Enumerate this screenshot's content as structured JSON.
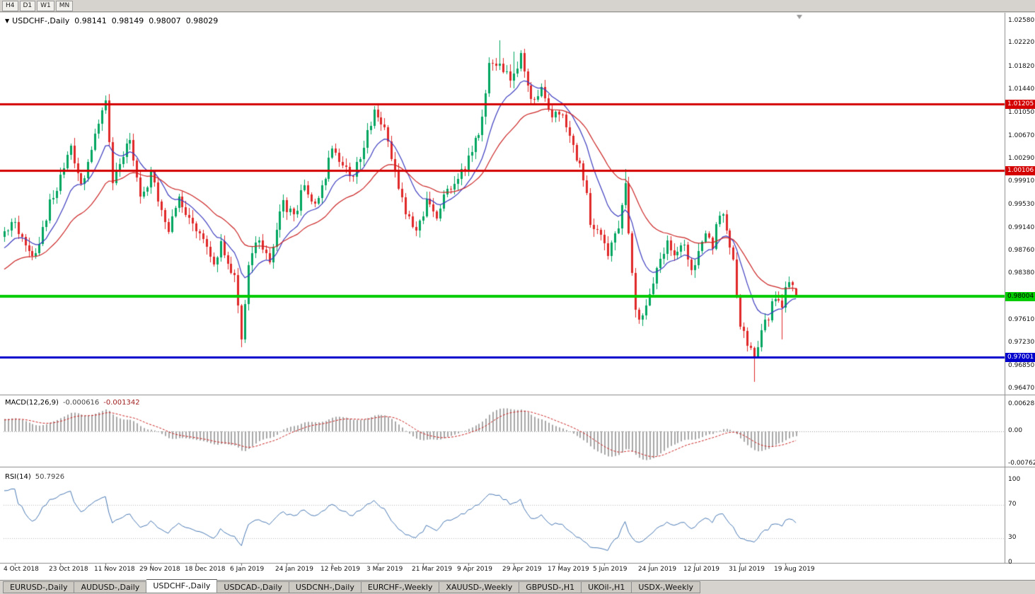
{
  "icons": {
    "dropdown": "▼"
  },
  "toolbar": {
    "timeframes": [
      "H4",
      "D1",
      "W1",
      "MN"
    ]
  },
  "chart": {
    "title": {
      "symbol": "USDCHF-,Daily",
      "open": "0.98141",
      "high": "0.98149",
      "low": "0.98007",
      "close": "0.98029"
    },
    "price_scale_labels": [
      "1.02580",
      "1.02220",
      "1.01820",
      "1.01440",
      "1.01050",
      "1.00670",
      "1.00290",
      "0.99910",
      "0.99530",
      "0.99140",
      "0.98760",
      "0.98380",
      "0.97610",
      "0.97230",
      "0.96850",
      "0.96470"
    ],
    "levels": [
      {
        "label": "1.01205",
        "price": 1.01205,
        "color": "#d40000",
        "text_color": "#ffffff",
        "thickness": 3
      },
      {
        "label": "1.00106",
        "price": 1.00106,
        "color": "#d40000",
        "text_color": "#ffffff",
        "thickness": 3
      },
      {
        "label": "0.98004",
        "price": 0.98004,
        "color": "#00cc00",
        "text_color": "#000000",
        "thickness": 4
      },
      {
        "label": "0.97001",
        "price": 0.97001,
        "color": "#0000cc",
        "text_color": "#ffffff",
        "thickness": 3
      }
    ]
  },
  "macd_panel": {
    "label": "MACD(12,26,9)",
    "value_main": "-0.000616",
    "value_signal": "-0.001342",
    "scale": {
      "top": "0.006286",
      "zero": "0.00",
      "bottom": "-0.00762"
    }
  },
  "rsi_panel": {
    "label": "RSI(14)",
    "value": "50.7926",
    "scale": {
      "top": "100",
      "upper": "70",
      "lower": "30",
      "bottom": "0"
    }
  },
  "tab_bar": {
    "active_index": 2,
    "tabs": [
      "EURUSD-,Daily",
      "AUDUSD-,Daily",
      "USDCHF-,Daily",
      "USDCAD-,Daily",
      "USDCNH-,Daily",
      "EURCHF-,Weekly",
      "XAUUSD-,Weekly",
      "GBPUSD-,H1",
      "UKOil-,H1",
      "USDX-,Weekly"
    ]
  },
  "chart_data": {
    "type": "candlestick",
    "symbol": "USDCHF",
    "period": "Daily",
    "y_axis": {
      "max": 1.0258,
      "min": 0.9647
    },
    "x_axis_dates": [
      "4 Oct 2018",
      "23 Oct 2018",
      "11 Nov 2018",
      "29 Nov 2018",
      "18 Dec 2018",
      "6 Jan 2019",
      "24 Jan 2019",
      "12 Feb 2019",
      "3 Mar 2019",
      "21 Mar 2019",
      "9 Apr 2019",
      "29 Apr 2019",
      "17 May 2019",
      "5 Jun 2019",
      "24 Jun 2019",
      "12 Jul 2019",
      "31 Jul 2019",
      "19 Aug 2019"
    ],
    "date_label_indices": [
      3,
      16,
      29,
      42,
      55,
      68,
      81,
      94,
      107,
      120,
      133,
      146,
      159,
      172,
      185,
      198,
      211,
      224
    ],
    "num_candles": 228,
    "price_anchors": [
      [
        -30,
        0.9755
      ],
      [
        -20,
        0.9802
      ],
      [
        -10,
        0.9862
      ],
      [
        0,
        0.9905
      ],
      [
        3,
        0.9928
      ],
      [
        6,
        0.9878
      ],
      [
        9,
        0.9868
      ],
      [
        13,
        0.9955
      ],
      [
        17,
        1.0008
      ],
      [
        19,
        1.0052
      ],
      [
        22,
        0.9985
      ],
      [
        25,
        1.004
      ],
      [
        27,
        1.009
      ],
      [
        29,
        1.0118
      ],
      [
        31,
        0.9992
      ],
      [
        34,
        1.0035
      ],
      [
        36,
        1.0058
      ],
      [
        39,
        0.9962
      ],
      [
        42,
        1.0002
      ],
      [
        45,
        0.9945
      ],
      [
        47,
        0.9908
      ],
      [
        50,
        0.9965
      ],
      [
        53,
        0.993
      ],
      [
        57,
        0.99
      ],
      [
        60,
        0.9856
      ],
      [
        62,
        0.989
      ],
      [
        66,
        0.9832
      ],
      [
        68,
        0.9722
      ],
      [
        70,
        0.986
      ],
      [
        73,
        0.9895
      ],
      [
        76,
        0.9862
      ],
      [
        80,
        0.9958
      ],
      [
        83,
        0.993
      ],
      [
        86,
        0.999
      ],
      [
        89,
        0.9952
      ],
      [
        92,
        1.0
      ],
      [
        94,
        1.0052
      ],
      [
        97,
        1.0018
      ],
      [
        100,
        1.0002
      ],
      [
        103,
        1.005
      ],
      [
        106,
        1.0108
      ],
      [
        109,
        1.0075
      ],
      [
        112,
        1.0005
      ],
      [
        115,
        0.9938
      ],
      [
        118,
        0.9906
      ],
      [
        121,
        0.9955
      ],
      [
        124,
        0.9932
      ],
      [
        127,
        0.998
      ],
      [
        130,
        1.0
      ],
      [
        133,
        1.0028
      ],
      [
        136,
        1.007
      ],
      [
        139,
        1.0182
      ],
      [
        142,
        1.0192
      ],
      [
        145,
        1.0158
      ],
      [
        148,
        1.0198
      ],
      [
        151,
        1.0125
      ],
      [
        154,
        1.0146
      ],
      [
        157,
        1.0102
      ],
      [
        160,
        1.0096
      ],
      [
        163,
        1.0048
      ],
      [
        166,
        1.0
      ],
      [
        168,
        0.9928
      ],
      [
        171,
        0.9898
      ],
      [
        173,
        0.9868
      ],
      [
        176,
        0.992
      ],
      [
        178,
        0.9982
      ],
      [
        179,
        0.9902
      ],
      [
        181,
        0.9778
      ],
      [
        183,
        0.9762
      ],
      [
        185,
        0.9802
      ],
      [
        187,
        0.984
      ],
      [
        190,
        0.9896
      ],
      [
        192,
        0.9868
      ],
      [
        195,
        0.9892
      ],
      [
        197,
        0.9848
      ],
      [
        199,
        0.9868
      ],
      [
        201,
        0.9902
      ],
      [
        203,
        0.9884
      ],
      [
        205,
        0.9942
      ],
      [
        207,
        0.9918
      ],
      [
        209,
        0.9858
      ],
      [
        211,
        0.9752
      ],
      [
        213,
        0.9724
      ],
      [
        215,
        0.9706
      ],
      [
        217,
        0.9744
      ],
      [
        219,
        0.9768
      ],
      [
        221,
        0.98
      ],
      [
        223,
        0.9788
      ],
      [
        225,
        0.9832
      ],
      [
        227,
        0.98029
      ]
    ],
    "forced_wicks": [
      {
        "i": 29,
        "high": 1.0128
      },
      {
        "i": 68,
        "low": 0.9716
      },
      {
        "i": 142,
        "high": 1.0226
      },
      {
        "i": 146,
        "high": 1.0208
      },
      {
        "i": 178,
        "high": 1.0012
      },
      {
        "i": 215,
        "low": 0.9659
      },
      {
        "i": 223,
        "low": 0.9729
      }
    ],
    "last_candle": {
      "open": 0.98141,
      "high": 0.98149,
      "low": 0.98007,
      "close": 0.98029
    },
    "overlays": [
      {
        "name": "ma-fast",
        "period": 12,
        "color": "#3c3cc0"
      },
      {
        "name": "ma-slow",
        "period": 30,
        "color": "#cc2424"
      }
    ],
    "indicators": {
      "macd": {
        "fast": 12,
        "slow": 26,
        "signal": 9,
        "histogram_color": "#a8a8a8",
        "signal_color": "#cc2222",
        "last_main": -0.000616,
        "last_signal": -0.001342,
        "scale_max": 0.006286,
        "scale_min": -0.00762
      },
      "rsi": {
        "period": 14,
        "color": "#4a7ab5",
        "last_value": 50.7926,
        "levels": [
          30,
          70
        ]
      }
    },
    "candle_colors": {
      "up": "#00a560",
      "down": "#e02828"
    }
  }
}
